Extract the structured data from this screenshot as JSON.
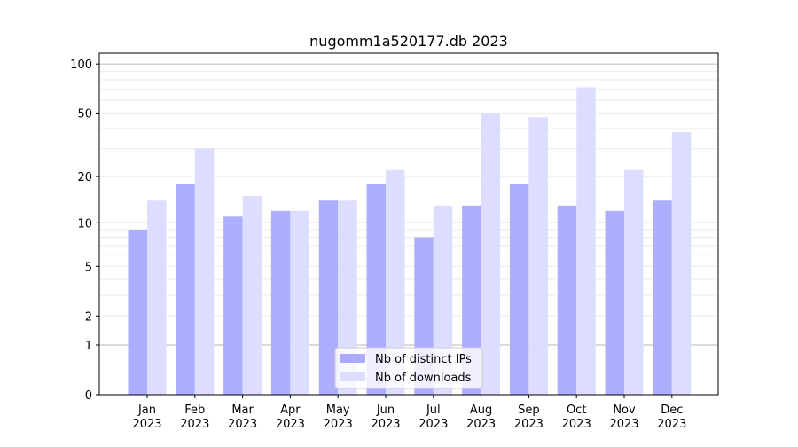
{
  "chart_data": {
    "type": "bar",
    "title": "nugomm1a520177.db 2023",
    "xlabel": "",
    "ylabel": "",
    "yscale": "log10(1+y)",
    "ylim": [
      0,
      110
    ],
    "yticks": [
      0,
      1,
      2,
      5,
      10,
      20,
      50,
      100
    ],
    "grid": true,
    "legend_placement": "bottom-center",
    "categories": [
      "Jan\n2023",
      "Feb\n2023",
      "Mar\n2023",
      "Apr\n2023",
      "May\n2023",
      "Jun\n2023",
      "Jul\n2023",
      "Aug\n2023",
      "Sep\n2023",
      "Oct\n2023",
      "Nov\n2023",
      "Dec\n2023"
    ],
    "series": [
      {
        "name": "Nb of distinct IPs",
        "color": "#aaaaff",
        "values": [
          9,
          18,
          11,
          12,
          14,
          18,
          8,
          13,
          18,
          13,
          12,
          14
        ]
      },
      {
        "name": "Nb of downloads",
        "color": "#ddddff",
        "values": [
          14,
          30,
          15,
          12,
          14,
          22,
          13,
          50,
          47,
          72,
          22,
          38
        ]
      }
    ]
  }
}
